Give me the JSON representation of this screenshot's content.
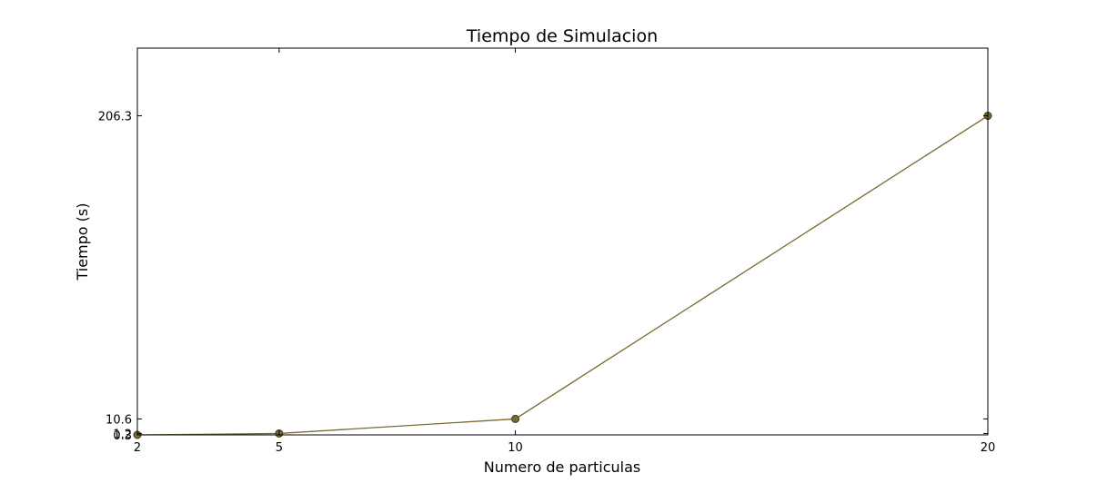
{
  "chart_data": {
    "type": "line",
    "title": "Tiempo de Simulacion",
    "xlabel": "Numero de particulas",
    "ylabel": "Tiempo (s)",
    "x": [
      2,
      5,
      10,
      20
    ],
    "series": [
      {
        "values": [
          0.3,
          1.2,
          10.6,
          206.3
        ],
        "color": "#7a6a33",
        "marker": "circle",
        "marker_color": "#7a6a33",
        "marker_edge_color": "#3b3518"
      }
    ],
    "xticks": [
      {
        "value": 2,
        "label": "2"
      },
      {
        "value": 5,
        "label": "5"
      },
      {
        "value": 10,
        "label": "10"
      },
      {
        "value": 20,
        "label": "20"
      }
    ],
    "yticks": [
      {
        "value": 0.3,
        "label": "0.3"
      },
      {
        "value": 1.2,
        "label": "1.2"
      },
      {
        "value": 10.6,
        "label": "10.6"
      },
      {
        "value": 206.3,
        "label": "206.3"
      }
    ],
    "xlim": [
      2,
      20
    ],
    "ylim": [
      0.3,
      250
    ],
    "grid": false,
    "legend": "none"
  }
}
